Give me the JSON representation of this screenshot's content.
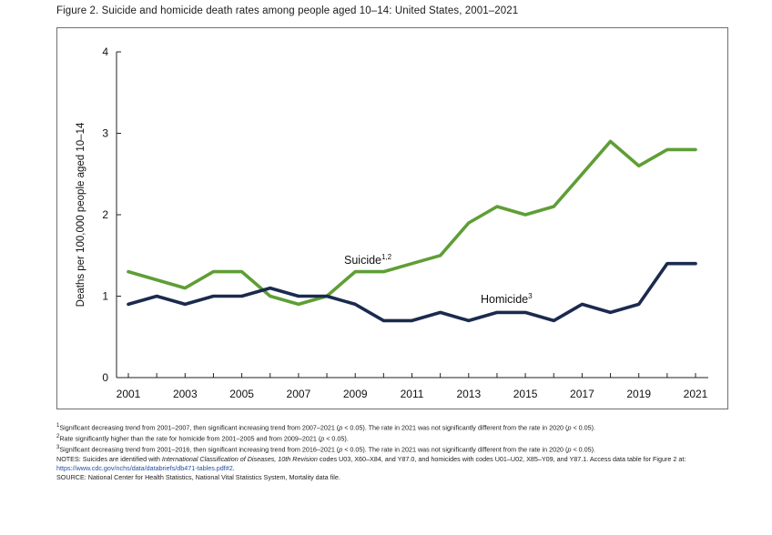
{
  "figure": {
    "title": "Figure 2. Suicide and homicide death rates among people aged 10–14: United States, 2001–2021"
  },
  "chart_data": {
    "type": "line",
    "title": "Figure 2. Suicide and homicide death rates among people aged 10–14: United States, 2001–2021",
    "xlabel": "",
    "ylabel": "Deaths per 100,000 people aged 10–14",
    "x": [
      2001,
      2002,
      2003,
      2004,
      2005,
      2006,
      2007,
      2008,
      2009,
      2010,
      2011,
      2012,
      2013,
      2014,
      2015,
      2016,
      2017,
      2018,
      2019,
      2020,
      2021
    ],
    "xticks": [
      "2001",
      "2003",
      "2005",
      "2007",
      "2009",
      "2011",
      "2013",
      "2015",
      "2017",
      "2019",
      "2021"
    ],
    "yticks": [
      "0",
      "1",
      "2",
      "3",
      "4"
    ],
    "ylim": [
      0,
      4
    ],
    "grid": false,
    "series": [
      {
        "name": "Suicide",
        "label_superscript": "1,2",
        "color": "#5f9e36",
        "values": [
          1.3,
          1.2,
          1.1,
          1.3,
          1.3,
          1.0,
          0.9,
          1.0,
          1.3,
          1.3,
          1.4,
          1.5,
          1.9,
          2.1,
          2.0,
          2.1,
          2.5,
          2.9,
          2.6,
          2.8,
          2.8
        ]
      },
      {
        "name": "Homicide",
        "label_superscript": "3",
        "color": "#1b2a4e",
        "values": [
          0.9,
          1.0,
          0.9,
          1.0,
          1.0,
          1.1,
          1.0,
          1.0,
          0.9,
          0.7,
          0.7,
          0.8,
          0.7,
          0.8,
          0.8,
          0.7,
          0.9,
          0.8,
          0.9,
          1.4,
          1.4
        ]
      }
    ]
  },
  "notes": {
    "n1_sup": "1",
    "n1_a": "Significant decreasing trend from 2001–2007, then significant increasing trend from 2007–2021 (",
    "n1_p": "p",
    "n1_b": " < 0.05). The rate in 2021 was not significantly different from the rate in 2020 (",
    "n1_p2": "p",
    "n1_c": " < 0.05).",
    "n2_sup": "2",
    "n2_a": "Rate significantly higher than the rate for homicide from 2001–2005 and from 2009–2021 (",
    "n2_p": "p",
    "n2_b": " < 0.05).",
    "n3_sup": "3",
    "n3_a": "Significant decreasing trend from 2001–2016, then significant increasing trend from 2016–2021 (",
    "n3_p": "p",
    "n3_b": " < 0.05). The rate in 2021 was not significantly different from the rate in 2020 (",
    "n3_p2": "p",
    "n3_c": " < 0.05).",
    "notes_a": "NOTES: Suicides are identified with ",
    "notes_italic": "International Classification of Diseases, 10th Revision",
    "notes_b": " codes U03, X60–X84, and Y87.0, and homicides with codes U01–U02, X85–Y09, and Y87.1. Access data table for Figure 2 at: ",
    "notes_link": "https://www.cdc.gov/nchs/data/databriefs/db471-tables.pdf#2",
    "notes_c": ".",
    "source": "SOURCE: National Center for Health Statistics, National Vital Statistics System, Mortality data file."
  }
}
